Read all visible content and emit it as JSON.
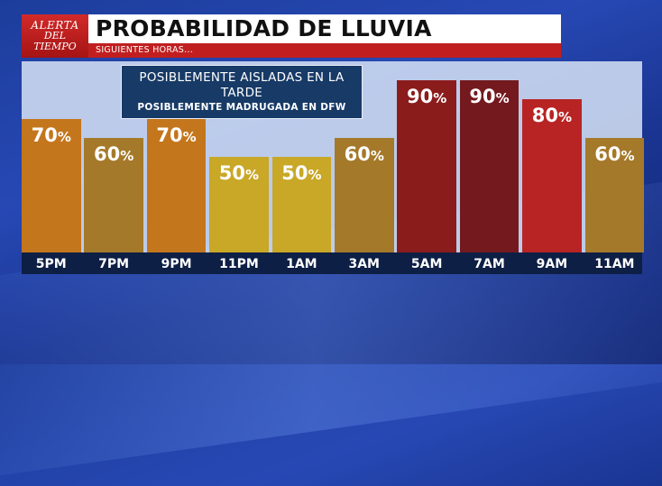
{
  "logo": {
    "line1": "ALERTA",
    "line2": "DEL TIEMPO"
  },
  "header": {
    "title": "PROBABILIDAD DE LLUVIA",
    "subtitle": "SIGUIENTES HORAS..."
  },
  "note": {
    "line1": "POSIBLEMENTE AISLADAS EN LA TARDE",
    "line2": "POSIBLEMENTE MADRUGADA EN DFW"
  },
  "chart_data": {
    "type": "bar",
    "categories": [
      "5PM",
      "7PM",
      "9PM",
      "11PM",
      "1AM",
      "3AM",
      "5AM",
      "7AM",
      "9AM",
      "11AM"
    ],
    "values": [
      70,
      60,
      70,
      50,
      50,
      60,
      90,
      90,
      80,
      60
    ],
    "unit": "%",
    "ylim": [
      0,
      100
    ],
    "colors": [
      "#c4761d",
      "#a5792a",
      "#c4761d",
      "#c9a727",
      "#c9a727",
      "#a5792a",
      "#8b1c1c",
      "#741a1f",
      "#b82424",
      "#a5792a"
    ]
  }
}
